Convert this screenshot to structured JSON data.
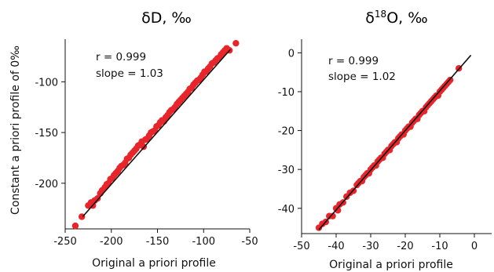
{
  "figure": {
    "ylabel": "Constant a priori profile of 0‰"
  },
  "chart_data": [
    {
      "type": "scatter",
      "title": "δD, ‰",
      "xlabel": "Original a priori profile",
      "ylabel": "Constant a priori profile of 0‰",
      "xlim": [
        -250,
        -50
      ],
      "ylim": [
        -245,
        -58
      ],
      "xticks": [
        -250,
        -200,
        -150,
        -100,
        -50
      ],
      "yticks": [
        -200,
        -150,
        -100
      ],
      "annotation": {
        "r": "r = 0.999",
        "slope": "slope = 1.03"
      },
      "fit": {
        "slope": 1.03,
        "intercept": 5,
        "x_range": [
          -231,
          -71
        ]
      },
      "x": [
        -239,
        -232,
        -225,
        -222,
        -220,
        -218,
        -215,
        -212,
        -210,
        -207,
        -205,
        -203,
        -201,
        -199,
        -197,
        -195,
        -193,
        -191,
        -189,
        -187,
        -185,
        -183,
        -181,
        -179,
        -177,
        -175,
        -173,
        -171,
        -169,
        -167,
        -165,
        -163,
        -161,
        -159,
        -157,
        -155,
        -153,
        -151,
        -149,
        -147,
        -145,
        -143,
        -141,
        -139,
        -137,
        -135,
        -133,
        -131,
        -129,
        -127,
        -125,
        -123,
        -121,
        -119,
        -117,
        -115,
        -113,
        -111,
        -109,
        -107,
        -105,
        -103,
        -101,
        -99,
        -97,
        -95,
        -93,
        -91,
        -89,
        -87,
        -85,
        -83,
        -81,
        -79,
        -77,
        -75,
        -72,
        -65
      ],
      "y": [
        -242,
        -233,
        -222,
        -219,
        -222,
        -217,
        -215,
        -210,
        -207,
        -204,
        -201,
        -200,
        -196,
        -195,
        -192,
        -190,
        -188,
        -185,
        -183,
        -182,
        -180,
        -176,
        -175,
        -172,
        -170,
        -168,
        -166,
        -163,
        -162,
        -159,
        -164,
        -157,
        -156,
        -153,
        -150,
        -149,
        -148,
        -144,
        -143,
        -140,
        -138,
        -139,
        -135,
        -133,
        -130,
        -128,
        -127,
        -125,
        -122,
        -120,
        -118,
        -116,
        -114,
        -112,
        -110,
        -107,
        -106,
        -103,
        -101,
        -99,
        -98,
        -96,
        -93,
        -90,
        -90,
        -87,
        -85,
        -82,
        -81,
        -79,
        -77,
        -76,
        -73,
        -71,
        -69,
        -67,
        -69,
        -62
      ]
    },
    {
      "type": "scatter",
      "title": "δ18O, ‰",
      "title_main": "δ",
      "title_sup": "18",
      "title_rest": "O, ‰",
      "xlabel": "Original a priori profile",
      "ylabel": "",
      "xlim": [
        -50,
        5
      ],
      "ylim": [
        -46.5,
        3.5
      ],
      "xticks": [
        -50,
        -40,
        -30,
        -20,
        -10,
        0
      ],
      "yticks": [
        -40,
        -30,
        -20,
        -10,
        0
      ],
      "annotation": {
        "r": "r = 0.999",
        "slope": "slope = 1.02"
      },
      "fit": {
        "slope": 1.02,
        "intercept": 0.4,
        "x_range": [
          -45,
          -1
        ]
      },
      "x": [
        -45,
        -44,
        -43,
        -42,
        -41,
        -40,
        -39.5,
        -39,
        -38,
        -37,
        -36,
        -35,
        -34,
        -33.5,
        -33,
        -32.5,
        -32,
        -31.5,
        -31,
        -30.5,
        -30,
        -29.5,
        -29,
        -28.5,
        -28,
        -27.5,
        -27,
        -26.5,
        -26,
        -25.5,
        -25,
        -24.5,
        -24,
        -23.5,
        -23,
        -22.5,
        -22,
        -21.5,
        -21,
        -20.5,
        -20,
        -19.5,
        -19,
        -18.5,
        -18,
        -17.5,
        -17,
        -16.5,
        -16,
        -15.5,
        -15,
        -14.5,
        -14,
        -13.5,
        -13,
        -12.5,
        -12,
        -11.5,
        -11,
        -10.5,
        -10,
        -9.5,
        -9,
        -8.5,
        -8,
        -7.5,
        -7,
        -4.5
      ],
      "y": [
        -45,
        -44,
        -43.5,
        -42,
        -42,
        -40,
        -40.5,
        -39,
        -38.5,
        -37,
        -36,
        -35.5,
        -34,
        -33.5,
        -33,
        -33,
        -32,
        -31.5,
        -31,
        -31,
        -30,
        -29.5,
        -29,
        -29,
        -28,
        -27.5,
        -27,
        -27,
        -26,
        -25.5,
        -25,
        -25,
        -24,
        -23.5,
        -23,
        -23,
        -22,
        -21.5,
        -21,
        -21,
        -20,
        -19.5,
        -19,
        -19,
        -18,
        -17.5,
        -17,
        -17,
        -16,
        -15.5,
        -15,
        -15,
        -14,
        -13.5,
        -13,
        -12.5,
        -12,
        -11.5,
        -11,
        -11,
        -10,
        -9.5,
        -9,
        -8.5,
        -8,
        -7.5,
        -7,
        -4
      ]
    }
  ]
}
